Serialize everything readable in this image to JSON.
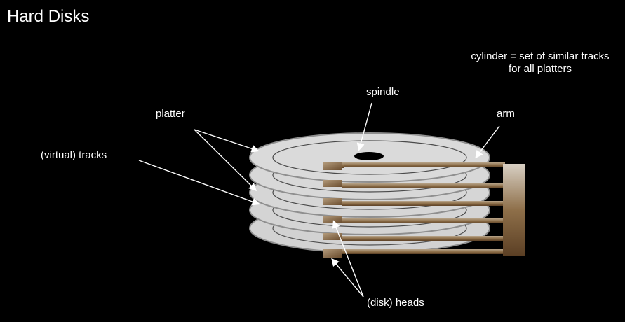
{
  "slide": {
    "title": "Hard Disks",
    "labels": {
      "platter": "platter",
      "tracks": "(virtual) tracks",
      "spindle": "spindle",
      "arm": "arm",
      "heads": "(disk) heads",
      "cylinder_line1": "cylinder = set of similar tracks",
      "cylinder_line2": "for all platters"
    }
  },
  "colors": {
    "background": "#000000",
    "text": "#ffffff",
    "platter_fill": "#d4d4d4",
    "platter_edge": "#8f8f8f",
    "track_line": "#4a4a4a",
    "arm_brown": "#7a5a36",
    "arm_highlight": "#c7b89f",
    "head_brown": "#6b4d2f"
  }
}
